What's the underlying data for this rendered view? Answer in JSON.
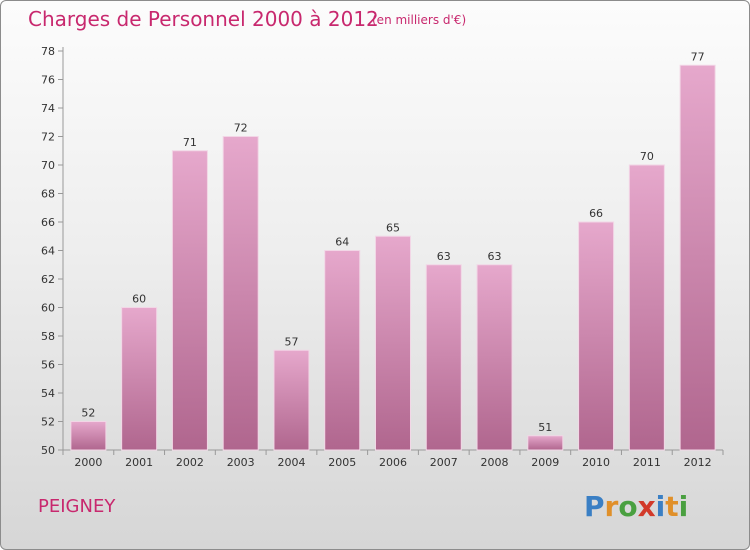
{
  "chart_data": {
    "type": "bar",
    "title": "Charges de Personnel 2000 à 2012",
    "subtitle": "(en milliers d'€)",
    "categories": [
      "2000",
      "2001",
      "2002",
      "2003",
      "2004",
      "2005",
      "2006",
      "2007",
      "2008",
      "2009",
      "2010",
      "2011",
      "2012"
    ],
    "values": [
      52,
      60,
      71,
      72,
      57,
      64,
      65,
      63,
      63,
      51,
      66,
      70,
      77
    ],
    "ylim": [
      50,
      78
    ],
    "yticks": [
      50,
      52,
      54,
      56,
      58,
      60,
      62,
      64,
      66,
      68,
      70,
      72,
      74,
      76,
      78
    ],
    "grid": false,
    "bar_color": "#c8709c",
    "text_color": "#c8286e"
  },
  "footer": {
    "place": "PEIGNEY",
    "brand_letters": [
      {
        "ch": "P",
        "color": "#3a7fc4"
      },
      {
        "ch": "r",
        "color": "#e0902a"
      },
      {
        "ch": "o",
        "color": "#4aa040"
      },
      {
        "ch": "x",
        "color": "#d23a2a"
      },
      {
        "ch": "i",
        "color": "#3a7fc4"
      },
      {
        "ch": "t",
        "color": "#e0902a"
      },
      {
        "ch": "i",
        "color": "#4aa040"
      }
    ]
  }
}
